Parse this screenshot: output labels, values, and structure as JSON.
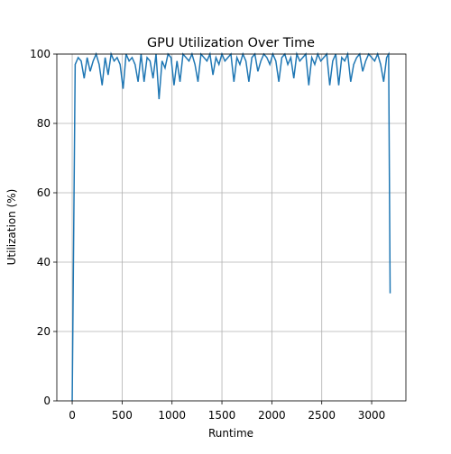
{
  "chart_data": {
    "type": "line",
    "title": "GPU Utilization Over Time",
    "xlabel": "Runtime",
    "ylabel": "Utilization (%)",
    "x": [
      0,
      30,
      60,
      90,
      120,
      150,
      180,
      210,
      240,
      270,
      300,
      330,
      360,
      390,
      420,
      450,
      480,
      510,
      540,
      570,
      600,
      630,
      660,
      690,
      720,
      750,
      780,
      810,
      840,
      870,
      900,
      930,
      960,
      990,
      1020,
      1050,
      1080,
      1110,
      1140,
      1170,
      1200,
      1230,
      1260,
      1290,
      1320,
      1350,
      1380,
      1410,
      1440,
      1470,
      1500,
      1530,
      1560,
      1590,
      1620,
      1650,
      1680,
      1710,
      1740,
      1770,
      1800,
      1830,
      1860,
      1890,
      1920,
      1950,
      1980,
      2010,
      2040,
      2070,
      2100,
      2130,
      2160,
      2190,
      2220,
      2250,
      2280,
      2310,
      2340,
      2370,
      2400,
      2430,
      2460,
      2490,
      2520,
      2550,
      2580,
      2610,
      2640,
      2670,
      2700,
      2730,
      2760,
      2790,
      2820,
      2850,
      2880,
      2910,
      2940,
      2970,
      3000,
      3030,
      3060,
      3090,
      3120,
      3150,
      3170,
      3185
    ],
    "series": [
      {
        "color": "#1f77b4",
        "values": [
          0,
          97,
          99,
          98,
          93,
          99,
          95,
          98,
          100,
          97,
          91,
          99,
          94,
          100,
          98,
          99,
          97,
          90,
          100,
          98,
          99,
          97,
          92,
          100,
          92,
          99,
          98,
          93,
          100,
          87,
          98,
          96,
          100,
          99,
          91,
          98,
          92,
          100,
          99,
          98,
          100,
          97,
          92,
          100,
          99,
          98,
          100,
          94,
          99,
          97,
          100,
          98,
          99,
          100,
          92,
          99,
          97,
          100,
          98,
          92,
          99,
          100,
          95,
          98,
          100,
          99,
          97,
          100,
          98,
          92,
          99,
          100,
          97,
          99,
          93,
          100,
          98,
          99,
          100,
          91,
          99,
          97,
          100,
          98,
          99,
          100,
          91,
          98,
          100,
          91,
          99,
          98,
          100,
          92,
          97,
          99,
          100,
          95,
          98,
          100,
          99,
          98,
          100,
          97,
          92,
          99,
          100,
          31
        ]
      }
    ],
    "xlim": [
      -154,
      3343
    ],
    "ylim": [
      0,
      100
    ],
    "xticks": [
      0,
      500,
      1000,
      1500,
      2000,
      2500,
      3000
    ],
    "yticks": [
      0,
      20,
      40,
      60,
      80,
      100
    ],
    "grid": true
  }
}
